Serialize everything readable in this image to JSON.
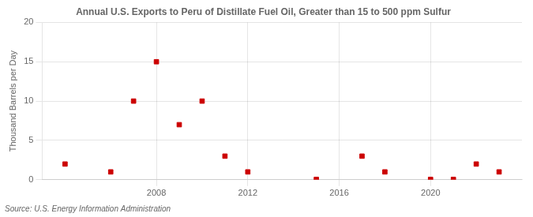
{
  "chart_data": {
    "type": "scatter",
    "title": "Annual U.S. Exports to Peru of Distillate Fuel Oil, Greater than 15 to 500 ppm Sulfur",
    "ylabel": "Thousand Barrels per Day",
    "annotations": [
      "Source: U.S. Energy Information Administration"
    ],
    "x": [
      2004,
      2006,
      2007,
      2008,
      2009,
      2010,
      2011,
      2012,
      2015,
      2017,
      2018,
      2020,
      2021,
      2022,
      2023
    ],
    "values": [
      2,
      1,
      10,
      15,
      7,
      10,
      3,
      1,
      0.05,
      3,
      1,
      0.05,
      0.05,
      2,
      1
    ],
    "color": "#cc0000",
    "marker": "square",
    "xlim": [
      2003,
      2024
    ],
    "xticks": [
      2008,
      2012,
      2016,
      2020
    ],
    "ylim": [
      0,
      20
    ],
    "yticks": [
      0,
      5,
      10,
      15,
      20
    ],
    "grid": true
  }
}
